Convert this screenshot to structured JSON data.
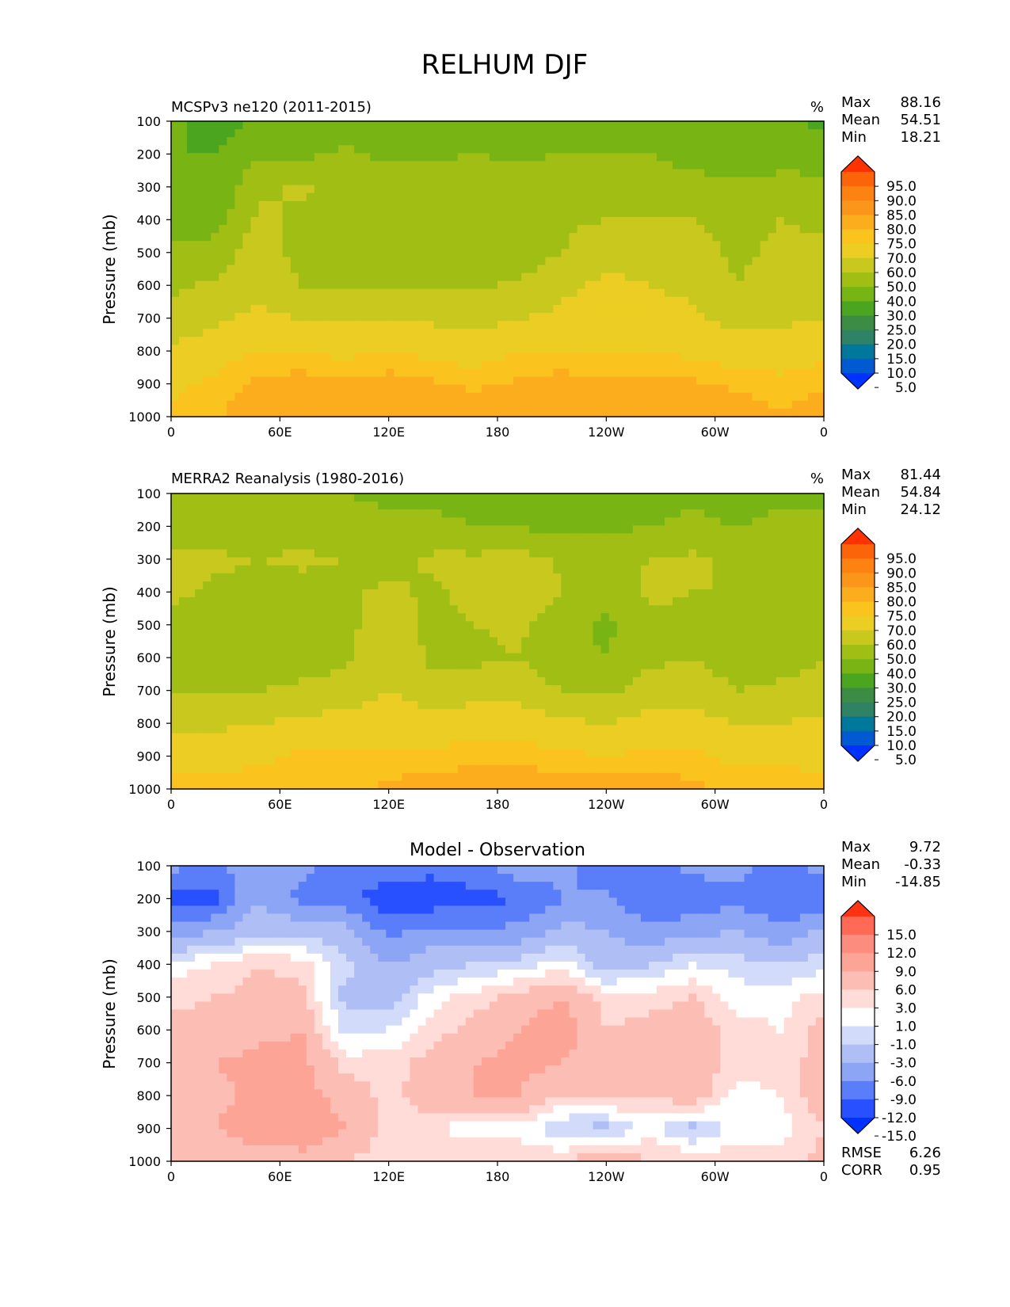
{
  "title": "RELHUM DJF",
  "chart_data": [
    {
      "type": "heatmap",
      "title": "MCSPv3 ne120 (2011-2015)",
      "units": "%",
      "ylabel": "Pressure (mb)",
      "xlabel": "",
      "x_ticks": [
        "0",
        "60E",
        "120E",
        "180",
        "120W",
        "60W",
        "0"
      ],
      "y_ticks": [
        "100",
        "200",
        "300",
        "400",
        "500",
        "600",
        "700",
        "800",
        "900",
        "1000"
      ],
      "ylim": [
        1000,
        100
      ],
      "stats": [
        {
          "label": "Max",
          "value": "88.16"
        },
        {
          "label": "Mean",
          "value": "54.51"
        },
        {
          "label": "Min",
          "value": "18.21"
        }
      ],
      "colorbar": {
        "labels": [
          "95.0",
          "90.0",
          "85.0",
          "80.0",
          "75.0",
          "70.0",
          "60.0",
          "50.0",
          "40.0",
          "30.0",
          "25.0",
          "20.0",
          "15.0",
          "10.0",
          "5.0"
        ],
        "colors": [
          "#0032ff",
          "#005ad2",
          "#00789b",
          "#308264",
          "#3c8c46",
          "#4ba51e",
          "#78b414",
          "#a0be14",
          "#c8c81e",
          "#ebcd23",
          "#fac31e",
          "#fcad1e",
          "#fc961a",
          "#fc8212",
          "#fc640a",
          "#ff3200"
        ]
      },
      "levels": [
        [
          32,
          30,
          32,
          34,
          42,
          48,
          52,
          62,
          68,
          72
        ],
        [
          26,
          30,
          30,
          36,
          44,
          52,
          58,
          66,
          72,
          74
        ],
        [
          32,
          38,
          48,
          52,
          56,
          58,
          62,
          70,
          76,
          80
        ],
        [
          34,
          38,
          52,
          48,
          46,
          50,
          60,
          70,
          78,
          80
        ],
        [
          34,
          42,
          44,
          44,
          46,
          48,
          58,
          68,
          76,
          80
        ],
        [
          30,
          38,
          44,
          44,
          44,
          48,
          58,
          70,
          78,
          80
        ],
        [
          34,
          38,
          46,
          44,
          46,
          50,
          58,
          68,
          76,
          80
        ],
        [
          36,
          40,
          48,
          46,
          44,
          48,
          56,
          66,
          74,
          78
        ],
        [
          36,
          38,
          46,
          40,
          44,
          52,
          60,
          70,
          76,
          80
        ],
        [
          36,
          40,
          48,
          48,
          50,
          58,
          62,
          70,
          78,
          80
        ],
        [
          38,
          40,
          48,
          50,
          58,
          62,
          64,
          70,
          76,
          80
        ],
        [
          32,
          40,
          48,
          50,
          56,
          60,
          62,
          70,
          76,
          80
        ],
        [
          30,
          34,
          46,
          50,
          54,
          58,
          62,
          68,
          76,
          78
        ],
        [
          30,
          32,
          42,
          46,
          48,
          50,
          56,
          66,
          74,
          78
        ],
        [
          32,
          32,
          46,
          50,
          52,
          54,
          58,
          66,
          72,
          76
        ],
        [
          28,
          34,
          44,
          48,
          52,
          56,
          60,
          68,
          74,
          78
        ]
      ]
    },
    {
      "type": "heatmap",
      "title": "MERRA2 Reanalysis (1980-2016)",
      "units": "%",
      "ylabel": "Pressure (mb)",
      "xlabel": "",
      "x_ticks": [
        "0",
        "60E",
        "120E",
        "180",
        "120W",
        "60W",
        "0"
      ],
      "y_ticks": [
        "100",
        "200",
        "300",
        "400",
        "500",
        "600",
        "700",
        "800",
        "900",
        "1000"
      ],
      "ylim": [
        1000,
        100
      ],
      "stats": [
        {
          "label": "Max",
          "value": "81.44"
        },
        {
          "label": "Mean",
          "value": "54.84"
        },
        {
          "label": "Min",
          "value": "24.12"
        }
      ],
      "colorbar": {
        "labels": [
          "95.0",
          "90.0",
          "85.0",
          "80.0",
          "75.0",
          "70.0",
          "60.0",
          "50.0",
          "40.0",
          "30.0",
          "25.0",
          "20.0",
          "15.0",
          "10.0",
          "5.0"
        ],
        "colors": [
          "#0032ff",
          "#005ad2",
          "#00789b",
          "#308264",
          "#3c8c46",
          "#4ba51e",
          "#78b414",
          "#a0be14",
          "#c8c81e",
          "#ebcd23",
          "#fac31e",
          "#fcad1e",
          "#fc961a",
          "#fc8212",
          "#fc640a",
          "#ff3200"
        ]
      },
      "levels": [
        [
          40,
          44,
          54,
          52,
          48,
          46,
          50,
          58,
          66,
          74
        ],
        [
          40,
          44,
          52,
          48,
          44,
          42,
          48,
          58,
          66,
          74
        ],
        [
          40,
          44,
          50,
          46,
          44,
          42,
          50,
          60,
          68,
          74
        ],
        [
          40,
          44,
          52,
          46,
          44,
          46,
          52,
          62,
          72,
          74
        ],
        [
          40,
          44,
          50,
          48,
          46,
          48,
          54,
          64,
          72,
          74
        ],
        [
          38,
          42,
          46,
          52,
          58,
          60,
          60,
          66,
          72,
          76
        ],
        [
          38,
          42,
          52,
          48,
          46,
          48,
          54,
          64,
          72,
          78
        ],
        [
          36,
          40,
          52,
          54,
          50,
          48,
          56,
          66,
          74,
          78
        ],
        [
          36,
          40,
          54,
          58,
          52,
          50,
          56,
          66,
          74,
          78
        ],
        [
          32,
          36,
          48,
          50,
          44,
          42,
          50,
          62,
          72,
          78
        ],
        [
          34,
          38,
          46,
          44,
          38,
          40,
          48,
          60,
          70,
          78
        ],
        [
          36,
          40,
          50,
          52,
          48,
          48,
          54,
          64,
          72,
          78
        ],
        [
          38,
          42,
          52,
          50,
          48,
          50,
          56,
          64,
          72,
          76
        ],
        [
          36,
          40,
          48,
          50,
          46,
          44,
          50,
          60,
          68,
          74
        ],
        [
          38,
          42,
          50,
          48,
          42,
          46,
          52,
          60,
          68,
          74
        ],
        [
          38,
          42,
          46,
          48,
          50,
          50,
          54,
          62,
          68,
          72
        ]
      ]
    },
    {
      "type": "heatmap",
      "title": "Model - Observation",
      "units": "",
      "ylabel": "Pressure (mb)",
      "xlabel": "",
      "x_ticks": [
        "0",
        "60E",
        "120E",
        "180",
        "120W",
        "60W",
        "0"
      ],
      "y_ticks": [
        "100",
        "200",
        "300",
        "400",
        "500",
        "600",
        "700",
        "800",
        "900",
        "1000"
      ],
      "ylim": [
        1000,
        100
      ],
      "stats": [
        {
          "label": "Max",
          "value": "9.72"
        },
        {
          "label": "Mean",
          "value": "-0.33"
        },
        {
          "label": "Min",
          "value": "-14.85"
        }
      ],
      "extra_stats": [
        {
          "label": "RMSE",
          "value": "6.26"
        },
        {
          "label": "CORR",
          "value": "0.95"
        }
      ],
      "colorbar": {
        "labels": [
          "15.0",
          "12.0",
          "9.0",
          "6.0",
          "3.0",
          "1.0",
          "-1.0",
          "-3.0",
          "-6.0",
          "-9.0",
          "-12.0",
          "-15.0"
        ],
        "colors": [
          "#0032ff",
          "#2850ff",
          "#5a7dfa",
          "#8ca5f5",
          "#afbef5",
          "#d2dcfa",
          "#ffffff",
          "#ffdcd7",
          "#fcbeb4",
          "#fca596",
          "#fc8c7d",
          "#ff6955",
          "#ff3214"
        ]
      },
      "levels": [
        [
          -8,
          -14,
          -8,
          0,
          2,
          5,
          6,
          6,
          6,
          6
        ],
        [
          -10,
          -13,
          -6,
          1,
          3,
          4,
          6,
          5,
          6,
          3
        ],
        [
          -6,
          -6,
          -4,
          3,
          4,
          5,
          7,
          7,
          8,
          4
        ],
        [
          -8,
          -10,
          -4,
          2,
          4,
          6,
          7,
          7,
          8,
          5
        ],
        [
          -11,
          -11,
          -5,
          -2,
          -4,
          -2,
          2,
          5,
          6,
          3
        ],
        [
          -10,
          -14,
          -10,
          -6,
          -4,
          -1,
          2,
          2,
          2,
          2
        ],
        [
          -11,
          -14,
          -8,
          -4,
          0,
          2,
          4,
          5,
          1,
          3
        ],
        [
          -10,
          -13,
          -9,
          -3,
          2,
          4,
          6,
          6,
          0,
          3
        ],
        [
          -7,
          -12,
          -8,
          -2,
          4,
          6,
          7,
          6,
          0,
          3
        ],
        [
          -8,
          -9,
          -5,
          0,
          6,
          8,
          6,
          3,
          -3,
          3
        ],
        [
          -12,
          -8,
          -6,
          -5,
          2,
          3,
          3,
          4,
          -4,
          6
        ],
        [
          -11,
          -12,
          -8,
          -3,
          2,
          4,
          5,
          3,
          0,
          3
        ],
        [
          -8,
          -11,
          -7,
          -1,
          3,
          5,
          5,
          5,
          -4,
          3
        ],
        [
          -8,
          -10,
          -6,
          -2,
          0,
          2,
          2,
          0,
          0,
          2
        ],
        [
          -10,
          -12,
          -8,
          -3,
          0,
          1,
          2,
          1,
          0,
          2
        ],
        [
          -8,
          -12,
          -5,
          -2,
          2,
          4,
          4,
          5,
          3,
          4
        ]
      ]
    }
  ]
}
